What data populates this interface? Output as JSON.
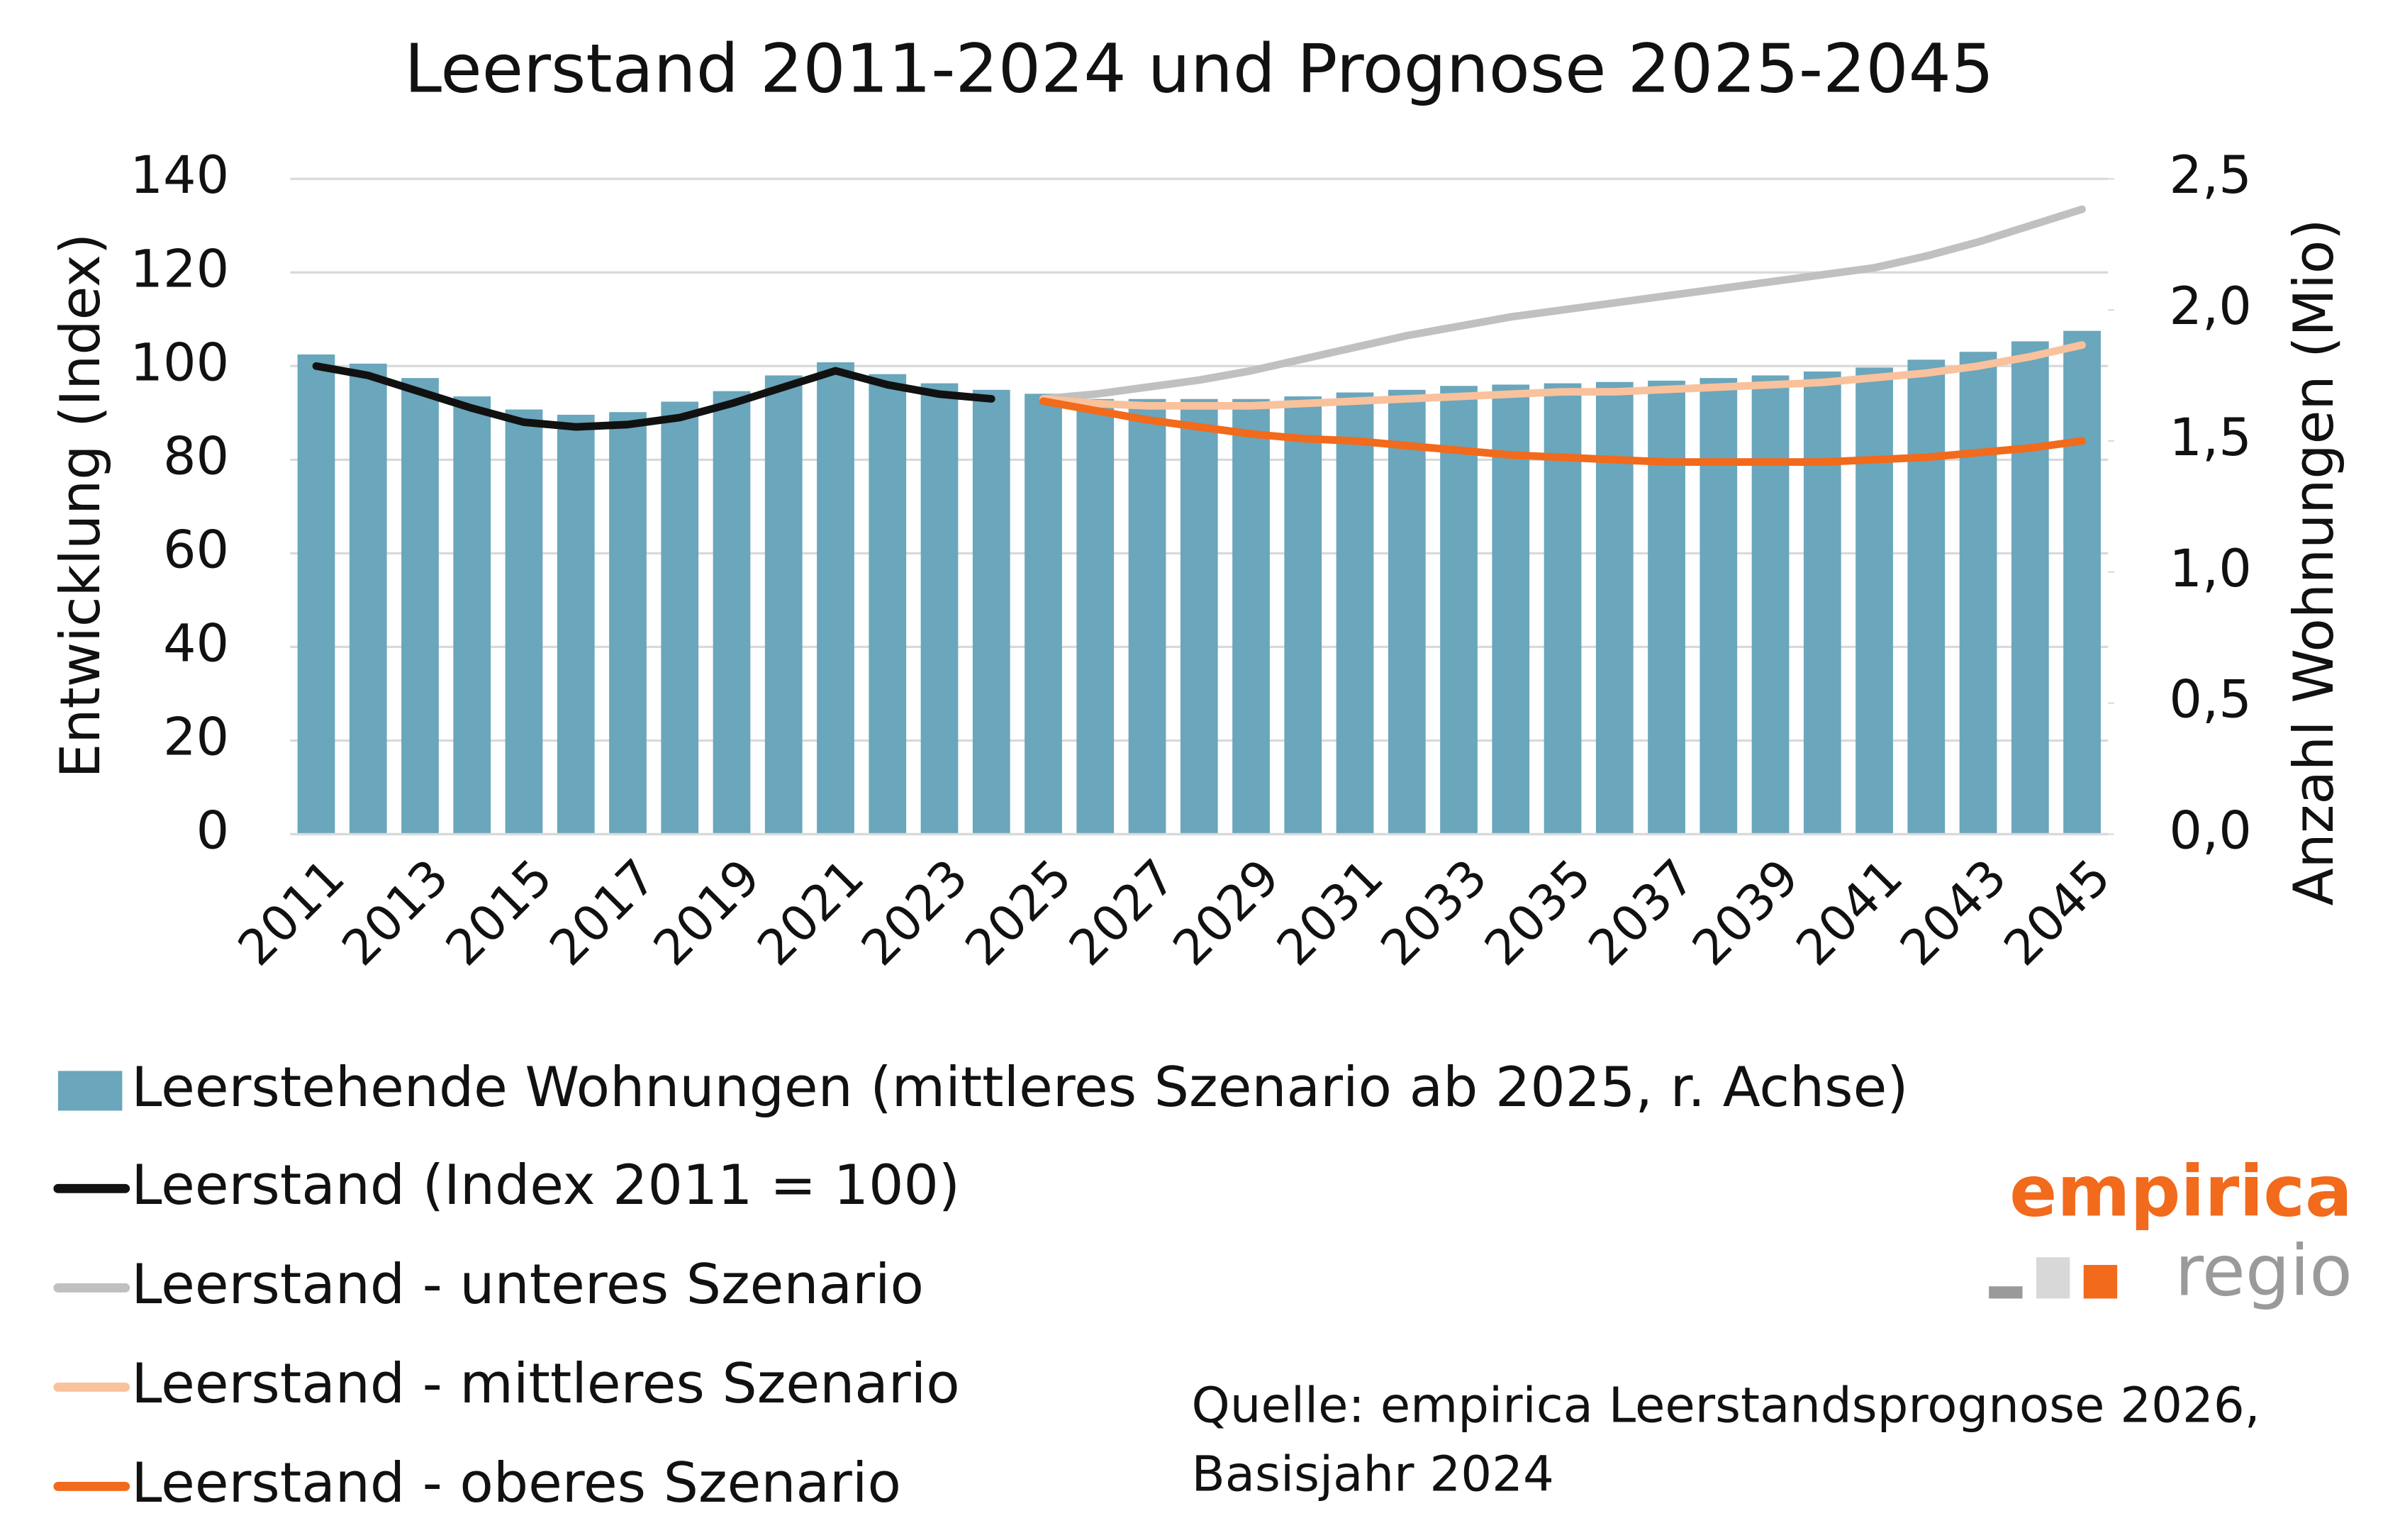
{
  "chart_data": {
    "type": "bar_line",
    "title": "Leerstand 2011-2024 und Prognose 2025-2045",
    "y_label": "Entwicklung (Index)",
    "y2_label": "Anzahl Wohnungen (Mio)",
    "categories": [
      "2011",
      null,
      "2013",
      null,
      "2015",
      null,
      "2017",
      null,
      "2019",
      null,
      "2021",
      null,
      "2023",
      null,
      "2025",
      null,
      "2027",
      null,
      "2029",
      null,
      "2031",
      null,
      "2033",
      null,
      "2035",
      null,
      "2037",
      null,
      "2039",
      null,
      "2041",
      null,
      "2043",
      null,
      "2045"
    ],
    "ylim": [
      0,
      140
    ],
    "yticks": [
      0,
      20,
      40,
      60,
      80,
      100,
      120,
      140
    ],
    "y2lim": [
      0,
      2.5
    ],
    "y2ticks": [
      {
        "value": 0,
        "label": "0,0"
      },
      {
        "value": 0.5,
        "label": "0,5"
      },
      {
        "value": 1,
        "label": "1,0"
      },
      {
        "value": 1.5,
        "label": "1,5"
      },
      {
        "value": 2,
        "label": "2,0"
      },
      {
        "value": 2.5,
        "label": "2,5"
      }
    ],
    "grid": true,
    "series": [
      {
        "name": "Leerstehende Wohnungen (mittleres Szenario ab 2025, r. Achse)",
        "type": "bar",
        "axis": "y2",
        "color": "#6aa6bc",
        "values": [
          1.83,
          1.795,
          1.74,
          1.67,
          1.62,
          1.6,
          1.61,
          1.65,
          1.69,
          1.75,
          1.8,
          1.755,
          1.72,
          1.695,
          1.68,
          1.66,
          1.66,
          1.66,
          1.66,
          1.67,
          1.685,
          1.695,
          1.71,
          1.715,
          1.72,
          1.725,
          1.73,
          1.74,
          1.75,
          1.765,
          1.78,
          1.81,
          1.84,
          1.88,
          1.92
        ]
      },
      {
        "name": "Leerstand (Index 2011 = 100)",
        "type": "line",
        "color": "#111111",
        "values": [
          100,
          98,
          94.5,
          91,
          88,
          87,
          87.5,
          89,
          92,
          95.5,
          99,
          96,
          94,
          93,
          null,
          null,
          null,
          null,
          null,
          null,
          null,
          null,
          null,
          null,
          null,
          null,
          null,
          null,
          null,
          null,
          null,
          null,
          null,
          null,
          null
        ]
      },
      {
        "name": "Leerstand - unteres Szenario",
        "type": "line",
        "color": "#c0c0c0",
        "values": [
          null,
          null,
          null,
          null,
          null,
          null,
          null,
          null,
          null,
          null,
          null,
          null,
          null,
          null,
          93,
          94,
          95.5,
          97,
          99,
          101.5,
          104,
          106.5,
          108.5,
          110.5,
          112,
          113.5,
          115,
          116.5,
          118,
          119.5,
          121,
          123.5,
          126.5,
          130,
          133.5
        ]
      },
      {
        "name": "Leerstand - mittleres Szenario",
        "type": "line",
        "color": "#f9c29c",
        "values": [
          null,
          null,
          null,
          null,
          null,
          null,
          null,
          null,
          null,
          null,
          null,
          null,
          null,
          null,
          93,
          92,
          91.5,
          91.5,
          91.5,
          92,
          92.5,
          93,
          93.5,
          94,
          94.5,
          94.5,
          95,
          95.5,
          96,
          96.5,
          97.5,
          98.5,
          100,
          102,
          104.5
        ]
      },
      {
        "name": "Leerstand - oberes Szenario",
        "type": "line",
        "color": "#f26a1b",
        "values": [
          null,
          null,
          null,
          null,
          null,
          null,
          null,
          null,
          null,
          null,
          null,
          null,
          null,
          null,
          92.5,
          90.5,
          88.5,
          87,
          85.5,
          84.5,
          84,
          83,
          82,
          81,
          80.5,
          80,
          79.5,
          79.5,
          79.5,
          79.5,
          80,
          80.5,
          81.5,
          82.5,
          84
        ]
      }
    ],
    "source": [
      "Quelle: empirica Leerstandsprognose 2026,",
      "Basisjahr 2024"
    ],
    "logo": {
      "name": "empirica",
      "sub": "regio"
    }
  }
}
